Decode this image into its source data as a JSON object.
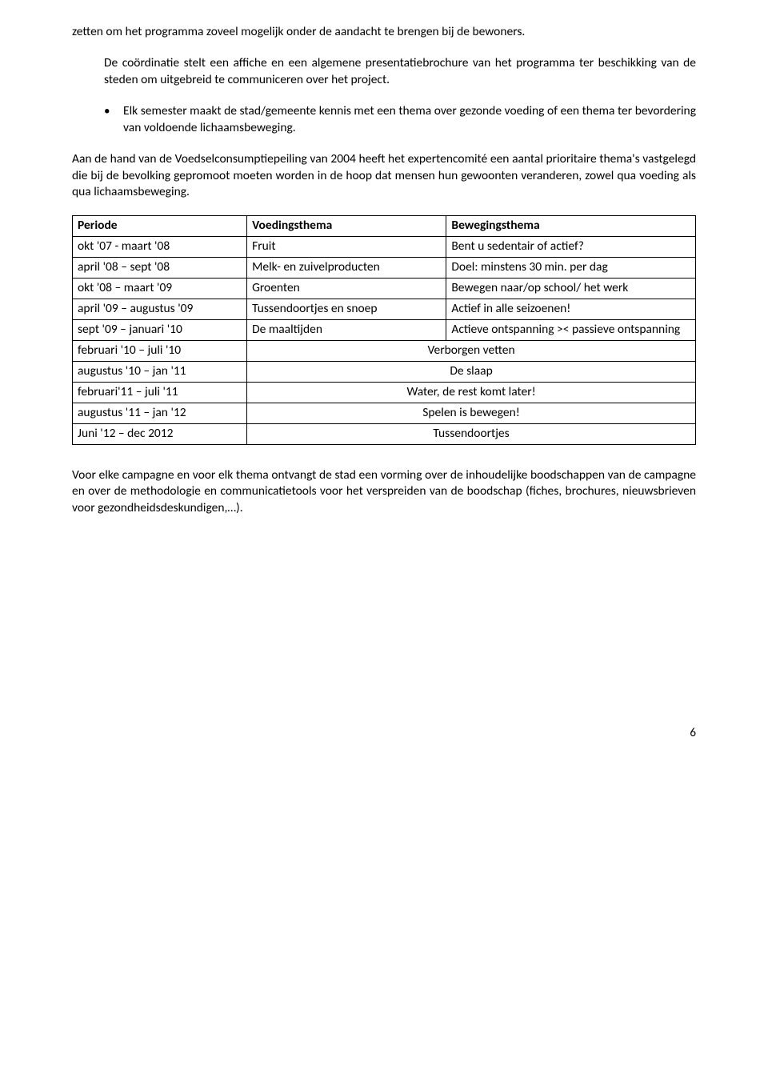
{
  "colors": {
    "background": "#ffffff",
    "text": "#000000",
    "table_border": "#000000"
  },
  "typography": {
    "body_fontsize_pt": 12,
    "font_family": "Calibri"
  },
  "p1": "zetten om het programma zoveel mogelijk onder de aandacht te brengen bij de bewoners.",
  "p2": "De coördinatie stelt een affiche en een algemene presentatiebrochure van het programma ter beschikking van de steden om uitgebreid te communiceren over het project.",
  "bullet1": "Elk semester maakt de stad/gemeente kennis met een thema over gezonde voeding of een thema ter bevordering van voldoende lichaamsbeweging.",
  "p3": "Aan de hand van de Voedselconsumptiepeiling van 2004 heeft het expertencomité een aantal prioritaire thema's vastgelegd die bij de bevolking gepromoot moeten worden in de hoop dat mensen hun gewoonten veranderen, zowel qua voeding als qua lichaamsbeweging.",
  "table": {
    "headers": [
      "Periode",
      "Voedingsthema",
      "Bewegingsthema"
    ],
    "rows": [
      {
        "periode": "okt '07 - maart '08",
        "voeding": "Fruit",
        "beweging": "Bent u sedentair of actief?"
      },
      {
        "periode": "april '08 – sept '08",
        "voeding": "Melk- en zuivelproducten",
        "beweging": "Doel: minstens 30 min. per dag"
      },
      {
        "periode": "okt '08 – maart '09",
        "voeding": "Groenten",
        "beweging": "Bewegen naar/op school/ het werk"
      },
      {
        "periode": "april '09 – augustus '09",
        "voeding": "Tussendoortjes en snoep",
        "beweging": "Actief in alle seizoenen!"
      },
      {
        "periode": "sept '09 – januari '10",
        "voeding": "De maaltijden",
        "beweging": "Actieve ontspanning >< passieve ontspanning"
      }
    ],
    "merged_rows": [
      {
        "periode": "februari '10 – juli '10",
        "merged": "Verborgen vetten"
      },
      {
        "periode": "augustus '10 – jan '11",
        "merged": "De slaap"
      },
      {
        "periode": "februari'11 – juli '11",
        "merged": "Water, de rest komt later!"
      },
      {
        "periode": "augustus '11 – jan '12",
        "merged": "Spelen is bewegen!"
      },
      {
        "periode": "Juni '12 – dec 2012",
        "merged": "Tussendoortjes"
      }
    ]
  },
  "p4": "Voor elke campagne en voor elk thema ontvangt de stad een vorming over de inhoudelijke boodschappen van de campagne en over de methodologie en communicatietools voor het verspreiden van de boodschap (fiches, brochures, nieuwsbrieven voor gezondheidsdeskundigen,…).",
  "page_number": "6"
}
